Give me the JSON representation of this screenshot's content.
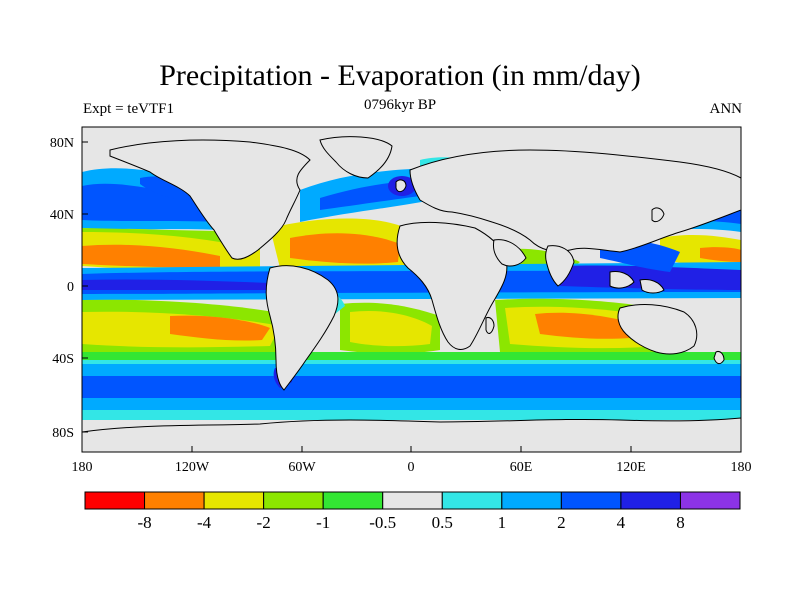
{
  "title": "Precipitation - Evaporation (in mm/day)",
  "left_string": "Expt = teVTF1",
  "center_string": "0796kyr BP",
  "right_string": "ANN",
  "lat_ticks": [
    "80N",
    "40N",
    "0",
    "40S",
    "80S"
  ],
  "lon_ticks": [
    "180",
    "120W",
    "60W",
    "0",
    "60E",
    "120E",
    "180"
  ],
  "colorbar": {
    "colors": [
      "#ff0000",
      "#ff8000",
      "#e6e600",
      "#8ce600",
      "#33e633",
      "#e6e6e6",
      "#33e6e6",
      "#00aaff",
      "#0055ff",
      "#2020e6",
      "#8c33e6"
    ],
    "labels": [
      "-8",
      "-4",
      "-2",
      "-1",
      "-0.5",
      "0.5",
      "1",
      "2",
      "4",
      "8"
    ]
  },
  "palette": {
    "strong_dry": "#ff8000",
    "dry": "#e6e600",
    "moderate_dry": "#8ce600",
    "light_dry": "#33e633",
    "neutral": "#e6e6e6",
    "light_wet": "#33e6e6",
    "wet": "#00aaff",
    "very_wet": "#0055ff",
    "extreme_wet": "#2020e6"
  }
}
